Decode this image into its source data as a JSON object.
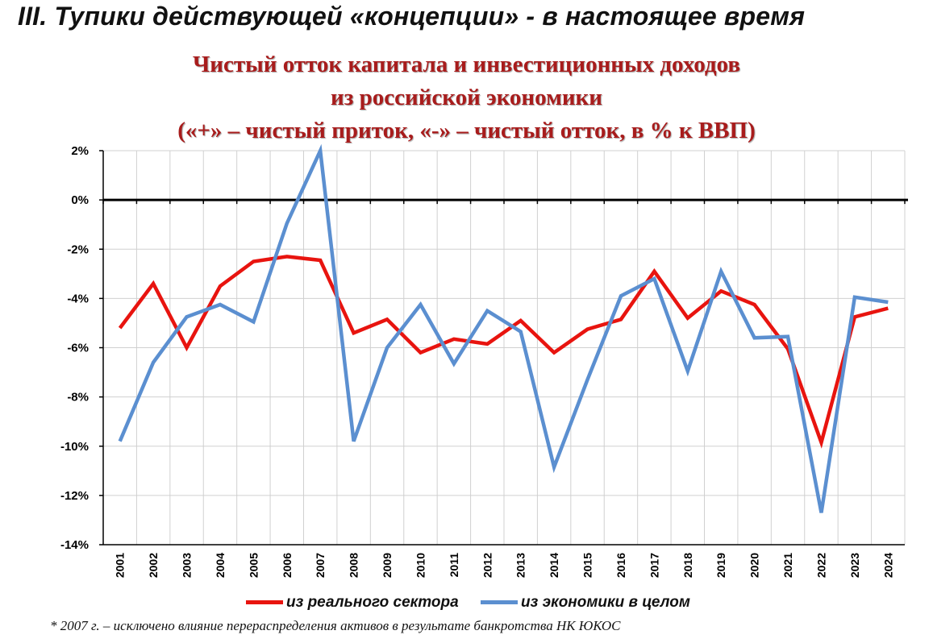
{
  "slide": {
    "title": "III. Тупики действующей «концепции» - в настоящее время"
  },
  "chart_data": {
    "type": "line",
    "title_lines": [
      "Чистый отток капитала и инвестиционных доходов",
      "из российской экономики",
      "(«+» – чистый приток, «-» – чистый отток, в % к ВВП)"
    ],
    "xlabel": "",
    "ylabel": "",
    "ylim": [
      -14,
      2
    ],
    "yticks": [
      2,
      0,
      -2,
      -4,
      -6,
      -8,
      -10,
      -12,
      -14
    ],
    "ytick_labels": [
      "2%",
      "0%",
      "-2%",
      "-4%",
      "-6%",
      "-8%",
      "-10%",
      "-12%",
      "-14%"
    ],
    "categories": [
      "2001",
      "2002",
      "2003",
      "2004",
      "2005",
      "2006",
      "2007",
      "2008",
      "2009",
      "2010",
      "2011",
      "2012",
      "2013",
      "2014",
      "2015",
      "2016",
      "2017",
      "2018",
      "2019",
      "2020",
      "2021",
      "2022",
      "2023",
      "2024"
    ],
    "grid": true,
    "legend_position": "bottom",
    "series": [
      {
        "name": "из реального сектора",
        "color": "#e8140f",
        "values": [
          -5.2,
          -3.4,
          -6.0,
          -3.5,
          -2.5,
          -2.3,
          -2.45,
          -5.4,
          -4.85,
          -6.2,
          -5.65,
          -5.85,
          -4.9,
          -6.2,
          -5.25,
          -4.85,
          -2.9,
          -4.8,
          -3.7,
          -4.25,
          -6.05,
          -9.85,
          -4.75,
          -4.4
        ]
      },
      {
        "name": "из экономики в целом",
        "color": "#5b8fd0",
        "values": [
          -9.8,
          -6.6,
          -4.75,
          -4.25,
          -4.95,
          -0.95,
          2.0,
          -9.8,
          -6.0,
          -4.25,
          -6.65,
          -4.5,
          -5.35,
          -10.85,
          -7.3,
          -3.9,
          -3.2,
          -6.95,
          -2.9,
          -5.6,
          -5.55,
          -12.7,
          -3.95,
          -4.15
        ]
      }
    ],
    "footnote": "* 2007 г. – исключено влияние перераспределения активов в результате банкротства НК ЮКОС"
  }
}
